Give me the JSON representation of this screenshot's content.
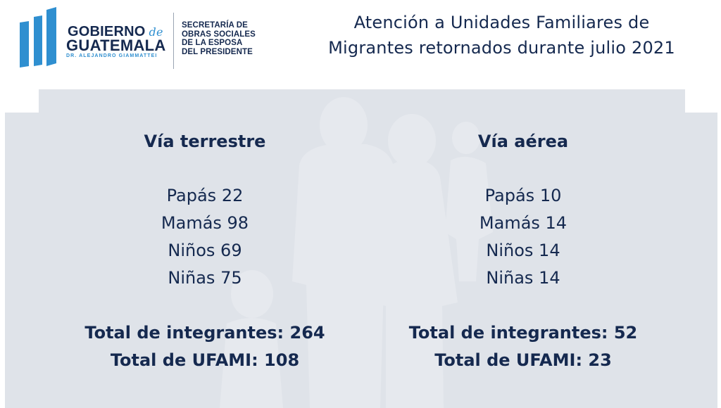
{
  "logo": {
    "gobierno": "GOBIERNO",
    "de": "de",
    "guatemala": "GUATEMALA",
    "president": "DR. ALEJANDRO GIAMMATTEI",
    "sosep_lines": [
      "SECRETARÍA DE",
      "OBRAS SOCIALES",
      "DE LA ESPOSA",
      "DEL PRESIDENTE"
    ],
    "mark_color": "#2f8fd0",
    "text_color": "#15294f"
  },
  "title": {
    "line1": "Atención a Unidades Familiares de",
    "line2": "Migrantes retornados durante julio 2021"
  },
  "terrestre": {
    "heading": "Vía terrestre",
    "items": [
      "Papás 22",
      "Mamás 98",
      "Niños 69",
      "Niñas 75"
    ],
    "total_integrantes": "Total de integrantes: 264",
    "total_ufami": "Total de UFAMI: 108"
  },
  "aerea": {
    "heading": "Vía aérea",
    "items": [
      "Papás 10",
      "Mamás 14",
      "Niños 14",
      "Niñas 14"
    ],
    "total_integrantes": "Total de integrantes: 52",
    "total_ufami": "Total de UFAMI: 23"
  },
  "colors": {
    "panel": "#dfe3e9",
    "silhouette": "#e6e9ee",
    "text": "#15294f"
  }
}
